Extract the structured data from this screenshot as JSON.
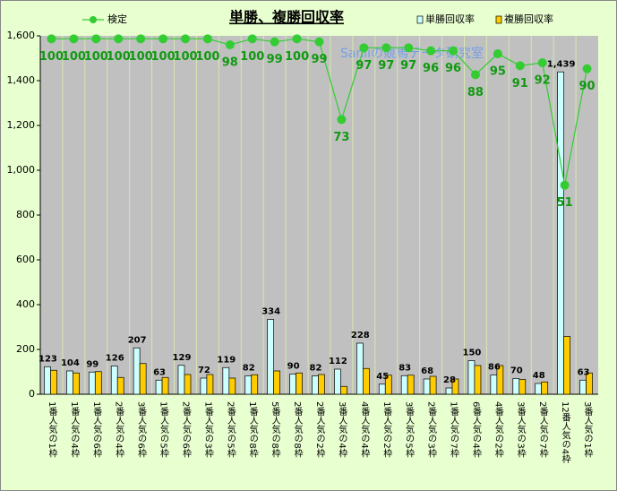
{
  "chart_data": {
    "type": "bar-line",
    "title": "単勝、複勝回収率",
    "watermark": "Sanliの競馬データ研究室",
    "categories": [
      "1番人気の1枠",
      "1番人気の4枠",
      "1番人気の6枠",
      "2番人気の4枠",
      "3番人気の6枠",
      "1番人気の5枠",
      "2番人気の6枠",
      "1番人気の3枠",
      "2番人気の5枠",
      "1番人気の8枠",
      "5番人気の8枠",
      "2番人気の8枠",
      "2番人気の2枠",
      "3番人気の4枠",
      "4番人気の4枠",
      "1番人気の2枠",
      "3番人気の5枠",
      "2番人気の3枠",
      "1番人気の7枠",
      "6番人気の4枠",
      "4番人気の2枠",
      "3番人気の3枠",
      "2番人気の7枠",
      "12番人気の4枠",
      "3番人気の1枠"
    ],
    "series": [
      {
        "name": "単勝回収率",
        "color": "#ccffff",
        "values": [
          123,
          104,
          99,
          126,
          207,
          63,
          129,
          72,
          119,
          82,
          334,
          90,
          82,
          112,
          228,
          45,
          83,
          68,
          28,
          150,
          86,
          70,
          48,
          1439,
          63
        ],
        "value_labels": [
          "123",
          "104",
          "99",
          "126",
          "207",
          "63",
          "129",
          "72",
          "119",
          "82",
          "334",
          "90",
          "82",
          "112",
          "228",
          "45",
          "83",
          "68",
          "28",
          "150",
          "86",
          "70",
          "48",
          "1,439",
          "63"
        ]
      },
      {
        "name": "複勝回収率",
        "color": "#ffcc00",
        "values": [
          107,
          95,
          101,
          75,
          137,
          75,
          88,
          88,
          72,
          87,
          104,
          95,
          88,
          35,
          115,
          85,
          85,
          80,
          68,
          128,
          128,
          66,
          55,
          258,
          95
        ]
      },
      {
        "name": "検定",
        "color": "#33cc33",
        "axis": "y2",
        "values": [
          100,
          100,
          100,
          100,
          100,
          100,
          100,
          100,
          98,
          100,
          99,
          100,
          99,
          73,
          97,
          97,
          97,
          96,
          96,
          88,
          95,
          91,
          92,
          51,
          90
        ]
      }
    ],
    "ylim": [
      0,
      1600
    ],
    "yticks": [
      0,
      200,
      400,
      600,
      800,
      {
        "value": 1000,
        "label": "1,000"
      },
      {
        "value": 1200,
        "label": "1,200"
      },
      {
        "value": 1400,
        "label": "1,400"
      },
      {
        "value": 1600,
        "label": "1,600"
      }
    ],
    "y2lim": [
      -19,
      101
    ]
  }
}
